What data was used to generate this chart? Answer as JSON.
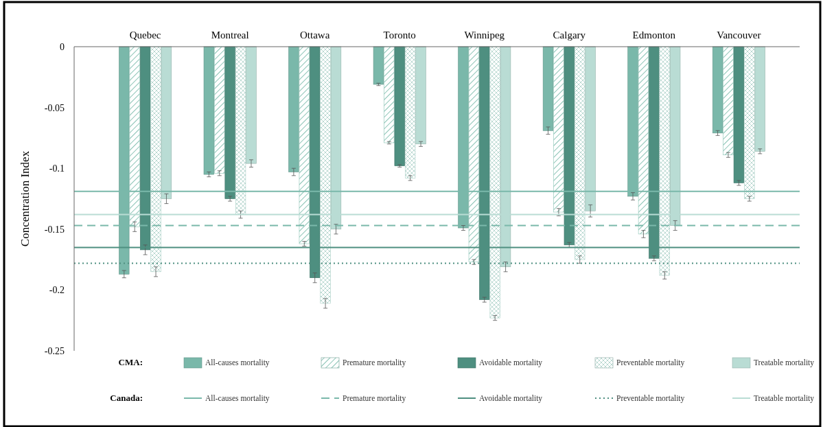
{
  "chart_data": {
    "type": "bar",
    "ylabel": "Concentration Index",
    "categories": [
      "Quebec",
      "Montreal",
      "Ottawa",
      "Toronto",
      "Winnipeg",
      "Calgary",
      "Edmonton",
      "Vancouver"
    ],
    "ylim": [
      -0.25,
      0
    ],
    "yticks": [
      0,
      -0.05,
      -0.1,
      -0.15,
      -0.2,
      -0.25
    ],
    "grid": false,
    "legend": "bottom",
    "legend_title": "CMA:",
    "series": [
      {
        "name": "All-causes mortality",
        "color": "#7ab8aa",
        "values": [
          -0.187,
          -0.105,
          -0.103,
          -0.031,
          -0.149,
          -0.069,
          -0.123,
          -0.071
        ],
        "errors": [
          0.003,
          0.002,
          0.003,
          0.001,
          0.002,
          0.003,
          0.003,
          0.002
        ]
      },
      {
        "name": "Premature mortality",
        "color": "#8cc4b6",
        "values": [
          -0.148,
          -0.104,
          -0.162,
          -0.079,
          -0.177,
          -0.136,
          -0.154,
          -0.089
        ],
        "errors": [
          0.004,
          0.002,
          0.002,
          0.001,
          0.002,
          0.003,
          0.003,
          0.002
        ]
      },
      {
        "name": "Avoidable mortality",
        "color": "#4e8f80",
        "values": [
          -0.167,
          -0.125,
          -0.19,
          -0.098,
          -0.208,
          -0.163,
          -0.174,
          -0.112
        ],
        "errors": [
          0.004,
          0.002,
          0.004,
          0.001,
          0.002,
          0.002,
          0.002,
          0.002
        ]
      },
      {
        "name": "Preventable mortality",
        "color": "#a9cfc6",
        "values": [
          -0.185,
          -0.138,
          -0.211,
          -0.108,
          -0.223,
          -0.175,
          -0.188,
          -0.125
        ],
        "errors": [
          0.004,
          0.003,
          0.004,
          0.002,
          0.002,
          0.003,
          0.003,
          0.002
        ]
      },
      {
        "name": "Treatable mortality",
        "color": "#b9dcd4",
        "values": [
          -0.125,
          -0.096,
          -0.15,
          -0.08,
          -0.181,
          -0.135,
          -0.147,
          -0.086
        ],
        "errors": [
          0.004,
          0.003,
          0.004,
          0.002,
          0.004,
          0.005,
          0.004,
          0.002
        ]
      }
    ],
    "ref_lines": [
      {
        "axis": "y",
        "value": -0.119,
        "label": "All-causes mortality",
        "color": "#7ab8aa",
        "line_style": "solid"
      },
      {
        "axis": "y",
        "value": -0.147,
        "label": "Premature mortality",
        "color": "#7ab8aa",
        "line_style": "dashed"
      },
      {
        "axis": "y",
        "value": -0.165,
        "label": "Avoidable mortality",
        "color": "#4e8f80",
        "line_style": "solid"
      },
      {
        "axis": "y",
        "value": -0.178,
        "label": "Preventable mortality",
        "color": "#4e8f80",
        "line_style": "dotted"
      },
      {
        "axis": "y",
        "value": -0.138,
        "label": "Treatable mortality",
        "color": "#b9dcd4",
        "line_style": "solid"
      }
    ],
    "annotations": [
      "Canada:"
    ]
  }
}
